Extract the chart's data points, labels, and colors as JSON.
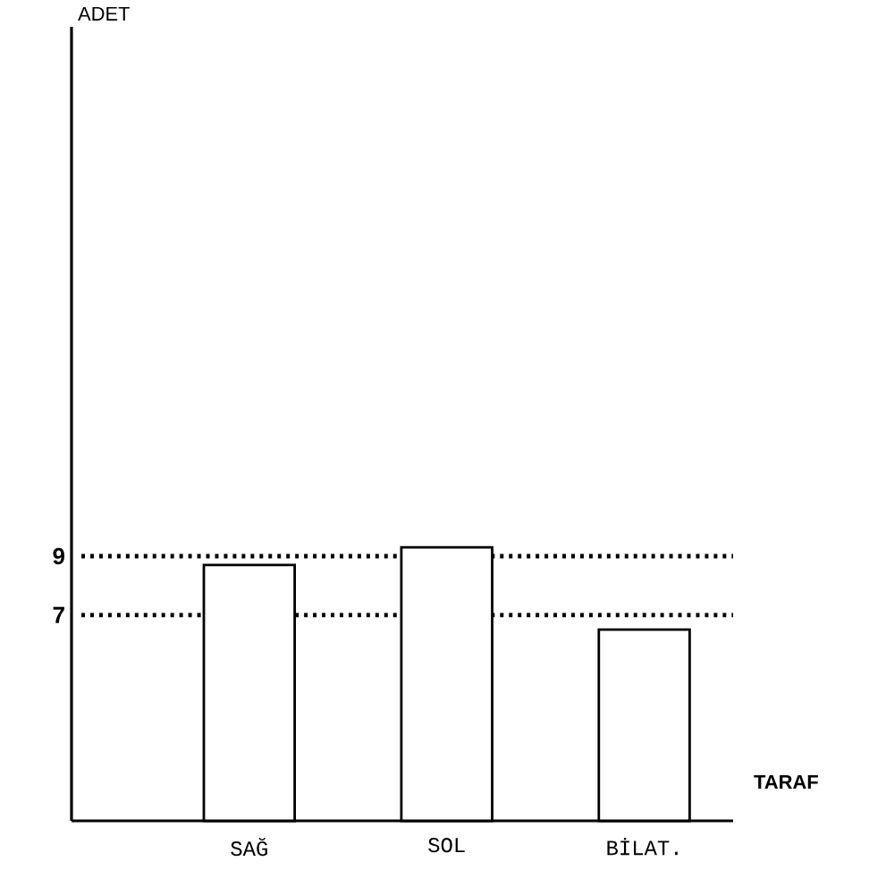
{
  "chart_data": {
    "type": "bar",
    "xlabel": "TARAF",
    "ylabel": "ADET",
    "categories": [
      "SAĞ",
      "SOL",
      "BİLAT."
    ],
    "values": [
      8.7,
      9.3,
      6.5
    ],
    "color": "#ffffff",
    "ylim": [
      0,
      27
    ],
    "yticks": [
      7,
      9
    ],
    "ref_lines": [
      {
        "axis": "y",
        "value": 9,
        "line_style": "dotted"
      },
      {
        "axis": "y",
        "value": 7,
        "line_style": "dotted"
      }
    ]
  }
}
